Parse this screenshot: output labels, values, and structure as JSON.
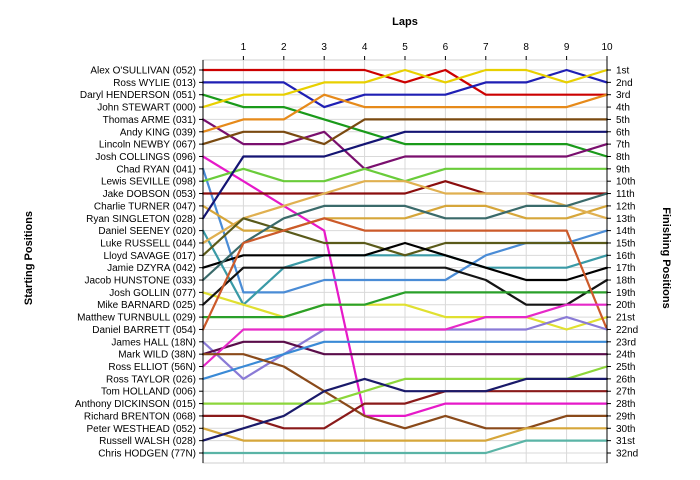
{
  "chart_data": {
    "type": "line",
    "title": "",
    "xlabel": "Laps",
    "ylabel_left": "Starting Positions",
    "ylabel_right": "Finishing Positions",
    "x": [
      0,
      1,
      2,
      3,
      4,
      5,
      6,
      7,
      8,
      9,
      10
    ],
    "xtick_labels": [
      "1",
      "2",
      "3",
      "4",
      "5",
      "6",
      "7",
      "8",
      "9",
      "10"
    ],
    "ylim": [
      1,
      32
    ],
    "y_inverted": true,
    "grid": true,
    "legend": "none",
    "starting_labels": [
      "Alex O'SULLIVAN (052)",
      "Ross WYLIE (013)",
      "Daryl HENDERSON (051)",
      "John STEWART (000)",
      "Thomas ARME (031)",
      "Andy KING (039)",
      "Lincoln NEWBY (067)",
      "Josh COLLINGS (096)",
      "Chad RYAN (041)",
      "Lewis SEVILLE (098)",
      "Jake DOBSON (053)",
      "Charlie TURNER (047)",
      "Ryan SINGLETON (028)",
      "Daniel SEENEY (020)",
      "Luke RUSSELL (044)",
      "Lloyd SAVAGE (017)",
      "Jamie DZYRA (042)",
      "Jacob HUNSTONE (033)",
      "Josh GOLLIN (077)",
      "Mike BARNARD (025)",
      "Matthew TURNBULL (029)",
      "Daniel BARRETT (054)",
      "James HALL (18N)",
      "Mark WILD (38N)",
      "Ross ELLIOT (56N)",
      "Ross TAYLOR (026)",
      "Tom HOLLAND (006)",
      "Anthony DICKINSON (015)",
      "Richard BRENTON (068)",
      "Peter WESTHEAD (052)",
      "Russell WALSH (028)",
      "Chris HODGEN (77N)"
    ],
    "finishing_labels": [
      "1st",
      "2nd",
      "3rd",
      "4th",
      "5th",
      "6th",
      "7th",
      "8th",
      "9th",
      "10th",
      "11th",
      "12th",
      "13th",
      "14th",
      "15th",
      "16th",
      "17th",
      "18th",
      "19th",
      "20th",
      "21st",
      "22nd",
      "23rd",
      "24th",
      "25th",
      "26th",
      "27th",
      "28th",
      "29th",
      "30th",
      "31st",
      "32nd"
    ],
    "series": [
      {
        "color": "#cc0000",
        "values": [
          1,
          1,
          1,
          1,
          1,
          2,
          1,
          3,
          3,
          3,
          3
        ]
      },
      {
        "color": "#1f1fb4",
        "values": [
          2,
          2,
          2,
          4,
          3,
          3,
          3,
          2,
          2,
          1,
          2
        ]
      },
      {
        "color": "#1a9a1a",
        "values": [
          3,
          4,
          4,
          5,
          6,
          7,
          7,
          7,
          7,
          7,
          8
        ]
      },
      {
        "color": "#e8d000",
        "values": [
          4,
          3,
          3,
          2,
          2,
          1,
          2,
          1,
          1,
          2,
          1
        ]
      },
      {
        "color": "#7a0f6e",
        "values": [
          5,
          7,
          7,
          6,
          9,
          8,
          8,
          8,
          8,
          8,
          7
        ]
      },
      {
        "color": "#e68a1a",
        "values": [
          6,
          5,
          5,
          3,
          4,
          4,
          4,
          4,
          4,
          4,
          3
        ]
      },
      {
        "color": "#7a4a10",
        "values": [
          7,
          6,
          6,
          7,
          5,
          5,
          5,
          5,
          5,
          5,
          5
        ]
      },
      {
        "color": "#e619c8",
        "values": [
          8,
          10,
          12,
          14,
          29,
          29,
          28,
          28,
          28,
          28,
          28
        ]
      },
      {
        "color": "#4a8cd6",
        "values": [
          9,
          19,
          19,
          18,
          18,
          18,
          18,
          16,
          15,
          15,
          14
        ]
      },
      {
        "color": "#6acc3a",
        "values": [
          10,
          9,
          10,
          10,
          9,
          10,
          9,
          9,
          9,
          9,
          9
        ]
      },
      {
        "color": "#8a0d0d",
        "values": [
          11,
          11,
          11,
          11,
          11,
          11,
          10,
          11,
          11,
          11,
          11
        ]
      },
      {
        "color": "#d6a63a",
        "values": [
          12,
          14,
          14,
          13,
          13,
          13,
          12,
          12,
          13,
          13,
          12
        ]
      },
      {
        "color": "#141473",
        "values": [
          13,
          8,
          8,
          8,
          7,
          6,
          6,
          6,
          6,
          6,
          6
        ]
      },
      {
        "color": "#3a9aa6",
        "values": [
          14,
          20,
          17,
          16,
          16,
          16,
          16,
          17,
          17,
          17,
          16
        ]
      },
      {
        "color": "#e0b050",
        "values": [
          15,
          13,
          12,
          11,
          10,
          10,
          11,
          11,
          11,
          12,
          13
        ]
      },
      {
        "color": "#5a5a1a",
        "values": [
          16,
          13,
          14,
          15,
          15,
          16,
          15,
          15,
          15,
          15,
          15
        ]
      },
      {
        "color": "#000000",
        "values": [
          17,
          16,
          16,
          16,
          16,
          15,
          16,
          17,
          18,
          18,
          17
        ]
      },
      {
        "color": "#3a6a6a",
        "values": [
          18,
          15,
          13,
          12,
          12,
          12,
          13,
          13,
          12,
          12,
          11
        ]
      },
      {
        "color": "#e0e030",
        "values": [
          19,
          20,
          21,
          20,
          20,
          20,
          21,
          21,
          21,
          22,
          21
        ]
      },
      {
        "color": "#141414",
        "values": [
          20,
          17,
          17,
          17,
          17,
          17,
          17,
          18,
          20,
          20,
          18
        ]
      },
      {
        "color": "#2aa02a",
        "values": [
          21,
          21,
          21,
          20,
          20,
          19,
          19,
          19,
          19,
          19,
          19
        ]
      },
      {
        "color": "#cc5a2a",
        "values": [
          22,
          15,
          14,
          13,
          14,
          14,
          14,
          14,
          14,
          14,
          22
        ]
      },
      {
        "color": "#8a7ad6",
        "values": [
          23,
          26,
          24,
          22,
          22,
          22,
          22,
          22,
          22,
          21,
          22
        ]
      },
      {
        "color": "#5a0d4a",
        "values": [
          24,
          23,
          23,
          24,
          24,
          24,
          24,
          24,
          24,
          24,
          24
        ]
      },
      {
        "color": "#e629c8",
        "values": [
          25,
          22,
          22,
          22,
          22,
          22,
          22,
          21,
          21,
          20,
          20
        ]
      },
      {
        "color": "#3a8ad6",
        "values": [
          26,
          25,
          24,
          23,
          23,
          23,
          23,
          23,
          23,
          23,
          23
        ]
      },
      {
        "color": "#8a4a1a",
        "values": [
          24,
          24,
          25,
          27,
          29,
          30,
          29,
          30,
          30,
          29,
          29
        ]
      },
      {
        "color": "#8cd63a",
        "values": [
          28,
          28,
          28,
          28,
          27,
          26,
          26,
          26,
          26,
          26,
          25
        ]
      },
      {
        "color": "#8a1a1a",
        "values": [
          29,
          29,
          30,
          30,
          28,
          28,
          27,
          27,
          27,
          27,
          27
        ]
      },
      {
        "color": "#d6a63a",
        "values": [
          30,
          31,
          31,
          31,
          31,
          31,
          31,
          31,
          30,
          30,
          30
        ]
      },
      {
        "color": "#1a1a6a",
        "values": [
          31,
          30,
          29,
          27,
          26,
          27,
          27,
          27,
          26,
          26,
          26
        ]
      },
      {
        "color": "#5ab4a6",
        "values": [
          32,
          32,
          32,
          32,
          32,
          32,
          32,
          32,
          31,
          31,
          31
        ]
      }
    ]
  }
}
